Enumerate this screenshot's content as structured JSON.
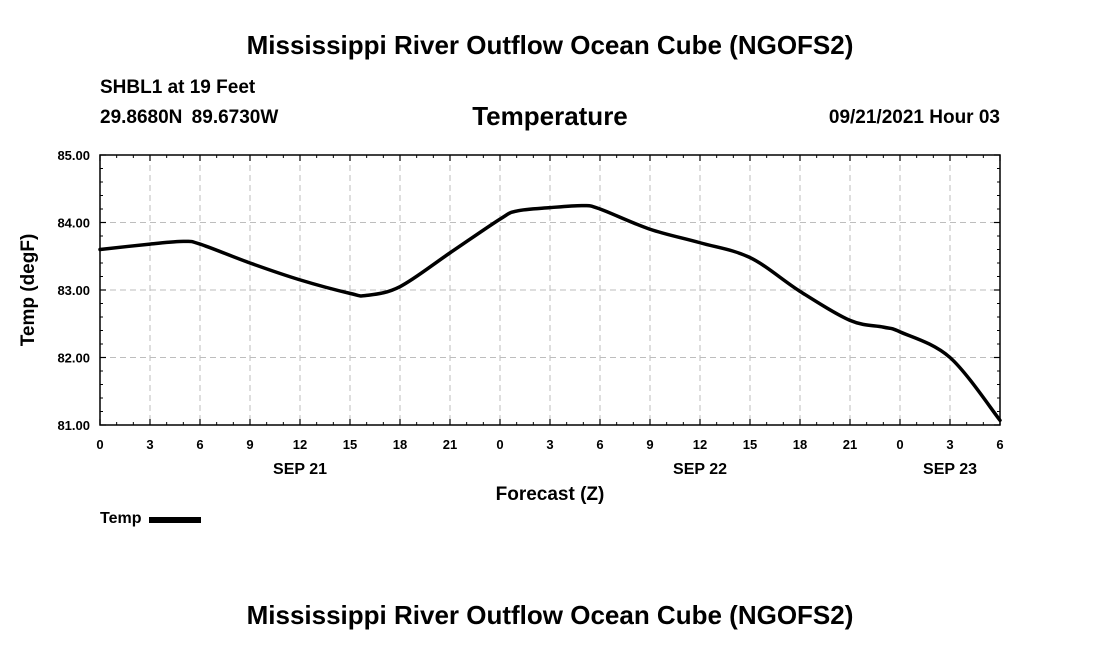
{
  "header": {
    "title": "Mississippi River Outflow Ocean Cube (NGOFS2)",
    "station": "SHBL1 at 19 Feet",
    "coordinates": "29.8680N  89.6730W",
    "datetime": "09/21/2021 Hour 03"
  },
  "footer": {
    "title": "Mississippi River Outflow Ocean Cube (NGOFS2)"
  },
  "chart_data": {
    "type": "line",
    "title": "Temperature",
    "xlabel": "Forecast (Z)",
    "ylabel": "Temp (degF)",
    "ylim": [
      81.0,
      85.0
    ],
    "xlim": [
      0,
      54
    ],
    "yticks": [
      "81.00",
      "82.00",
      "83.00",
      "84.00",
      "85.00"
    ],
    "ytick_values": [
      81,
      82,
      83,
      84,
      85
    ],
    "xtick_values": [
      0,
      3,
      6,
      9,
      12,
      15,
      18,
      21,
      24,
      27,
      30,
      33,
      36,
      39,
      42,
      45,
      48,
      51,
      54
    ],
    "xtick_labels": [
      "0",
      "3",
      "6",
      "9",
      "12",
      "15",
      "18",
      "21",
      "0",
      "3",
      "6",
      "9",
      "12",
      "15",
      "18",
      "21",
      "0",
      "3",
      "6"
    ],
    "day_labels": [
      {
        "label": "SEP 21",
        "x": 12
      },
      {
        "label": "SEP 22",
        "x": 36
      },
      {
        "label": "SEP 23",
        "x": 51
      }
    ],
    "grid": true,
    "legend": "bottom-left",
    "series": [
      {
        "name": "Temp",
        "color": "#000000",
        "x": [
          0,
          3,
          5,
          6,
          9,
          12,
          15,
          16,
          18,
          21,
          24,
          25,
          27,
          29,
          30,
          33,
          36,
          39,
          42,
          45,
          47,
          48,
          51,
          54
        ],
        "values": [
          83.6,
          83.68,
          83.72,
          83.68,
          83.4,
          83.15,
          82.95,
          82.92,
          83.05,
          83.55,
          84.05,
          84.17,
          84.22,
          84.25,
          84.2,
          83.9,
          83.7,
          83.48,
          82.98,
          82.55,
          82.45,
          82.38,
          82.0,
          81.07
        ]
      }
    ]
  }
}
